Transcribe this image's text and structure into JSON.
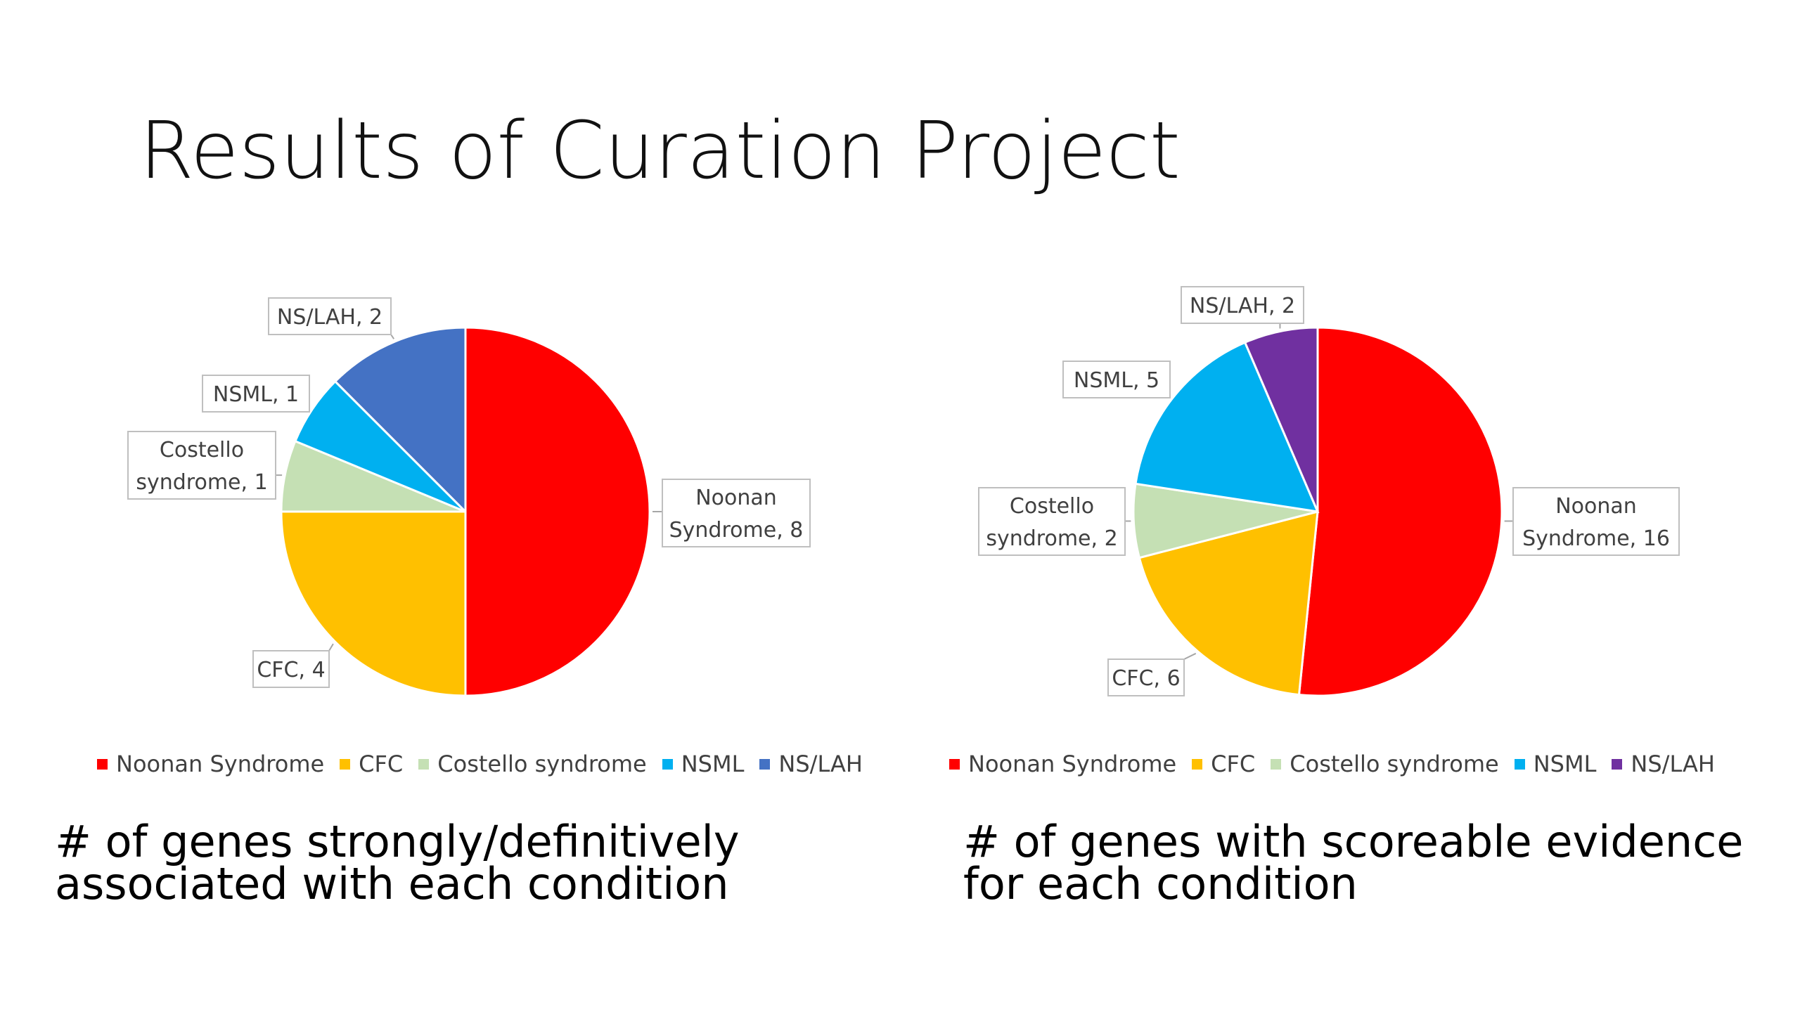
{
  "slide": {
    "title": "Results of Curation Project"
  },
  "captions": {
    "left": "# of genes strongly/definitively associated with each condition",
    "right": "# of genes with scoreable evidence for each condition"
  },
  "chart_data": [
    {
      "type": "pie",
      "title": "",
      "legend_position": "bottom",
      "slices": [
        {
          "label": "Noonan Syndrome",
          "value": 8,
          "color": "#FF0000",
          "data_label": [
            "Noonan",
            "Syndrome, 8"
          ]
        },
        {
          "label": "CFC",
          "value": 4,
          "color": "#FFC000",
          "data_label": [
            "CFC, 4"
          ]
        },
        {
          "label": "Costello syndrome",
          "value": 1,
          "color": "#C5E0B4",
          "data_label": [
            "Costello",
            "syndrome, 1"
          ]
        },
        {
          "label": "NSML",
          "value": 1,
          "color": "#00B0F0",
          "data_label": [
            "NSML, 1"
          ]
        },
        {
          "label": "NS/LAH",
          "value": 2,
          "color": "#4472C4",
          "data_label": [
            "NS/LAH, 2"
          ]
        }
      ]
    },
    {
      "type": "pie",
      "title": "",
      "legend_position": "bottom",
      "slices": [
        {
          "label": "Noonan Syndrome",
          "value": 16,
          "color": "#FF0000",
          "data_label": [
            "Noonan",
            "Syndrome, 16"
          ]
        },
        {
          "label": "CFC",
          "value": 6,
          "color": "#FFC000",
          "data_label": [
            "CFC, 6"
          ]
        },
        {
          "label": "Costello syndrome",
          "value": 2,
          "color": "#C5E0B4",
          "data_label": [
            "Costello",
            "syndrome, 2"
          ]
        },
        {
          "label": "NSML",
          "value": 5,
          "color": "#00B0F0",
          "data_label": [
            "NSML, 5"
          ]
        },
        {
          "label": "NS/LAH",
          "value": 2,
          "color": "#7030A0",
          "data_label": [
            "NS/LAH, 2"
          ]
        }
      ]
    }
  ]
}
